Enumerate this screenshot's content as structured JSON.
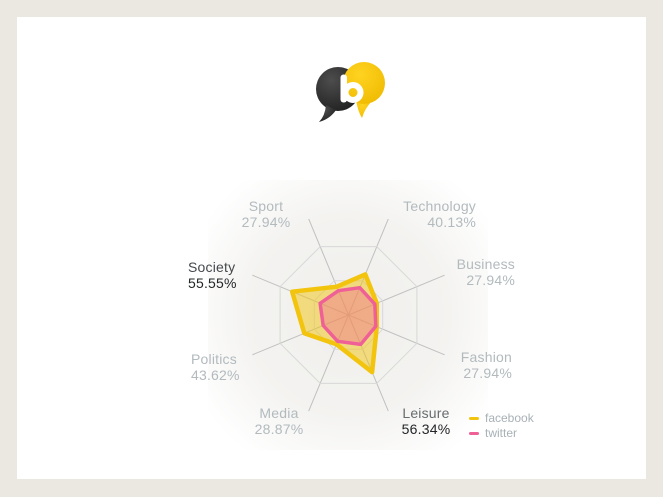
{
  "page": {
    "background_color": "#ebe8e2",
    "panel_color": "#ffffff"
  },
  "logo": {
    "icon": "two-speech-bubbles-forming-letter-b",
    "dark_bubble_color": "#2f2f2f",
    "yellow_bubble_color": "#f5c411",
    "letter_color": "#ffffff"
  },
  "chart_data": {
    "type": "radar",
    "grid_shape": "octagon",
    "rings": 2,
    "axis_range": [
      0,
      67.5
    ],
    "legend_position": "bottom-right",
    "categories": [
      "Technology",
      "Business",
      "Fashion",
      "Leisure",
      "Media",
      "Politics",
      "Society",
      "Sport"
    ],
    "series": [
      {
        "name": "facebook",
        "color": "#f2c40e",
        "values": [
          40.13,
          27.94,
          27.94,
          56.34,
          28.87,
          43.62,
          55.55,
          27.94
        ]
      },
      {
        "name": "twitter",
        "color": "#ef6097",
        "values": [
          27.0,
          26.0,
          27.0,
          29.0,
          26.0,
          25.0,
          28.0,
          24.0
        ]
      }
    ],
    "grid_colors": {
      "ring": "#d8d8d8",
      "spoke": "#c0c0c0"
    }
  },
  "labels": [
    {
      "name": "Sport",
      "value": "27.94%"
    },
    {
      "name": "Technology",
      "value": "40.13%"
    },
    {
      "name": "Business",
      "value": "27.94%"
    },
    {
      "name": "Fashion",
      "value": "27.94%"
    },
    {
      "name": "Leisure",
      "value": "56.34%"
    },
    {
      "name": "Media",
      "value": "28.87%"
    },
    {
      "name": "Politics",
      "value": "43.62%"
    },
    {
      "name": "Society",
      "value": "55.55%"
    }
  ],
  "legend": {
    "items": [
      {
        "label": "facebook",
        "color": "#f2c40e"
      },
      {
        "label": "twitter",
        "color": "#ef6097"
      }
    ]
  }
}
